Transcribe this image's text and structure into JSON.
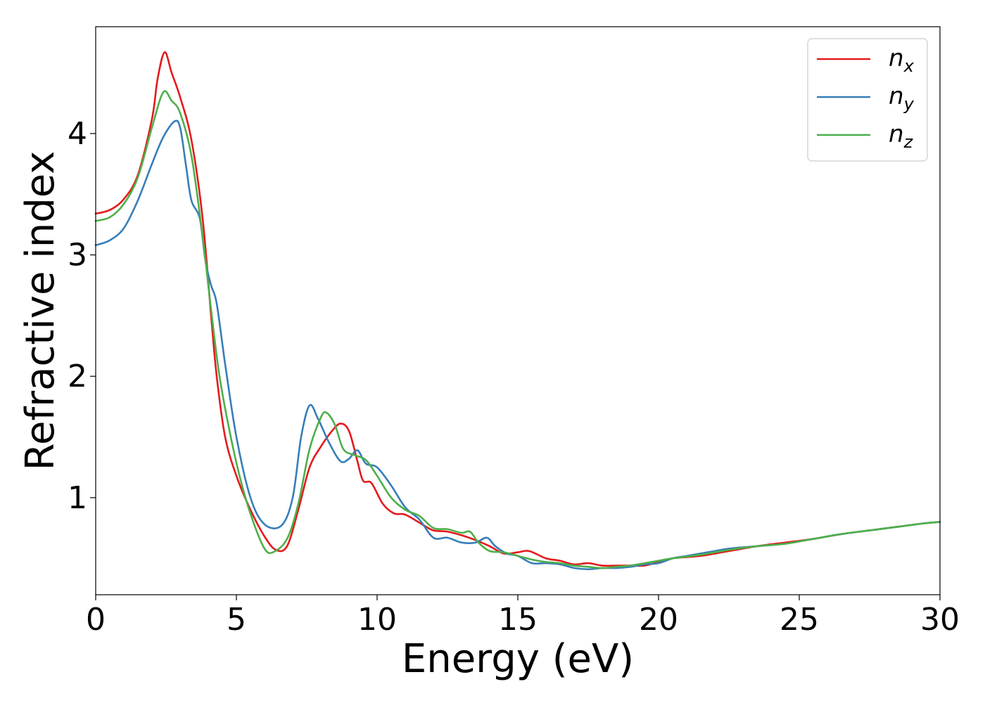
{
  "chart_data": {
    "type": "line",
    "title": "",
    "xlabel": "Energy (eV)",
    "ylabel": "Refractive index",
    "xlim": [
      0,
      30
    ],
    "ylim": [
      0.2,
      4.88
    ],
    "xticks": [
      0,
      5,
      10,
      15,
      20,
      25,
      30
    ],
    "yticks": [
      1,
      2,
      3,
      4
    ],
    "grid": false,
    "legend_position": "top-right",
    "series": [
      {
        "name": "n_x",
        "label_base": "n",
        "label_sub": "x",
        "color": "#e41a1c",
        "points": [
          [
            0,
            3.34
          ],
          [
            0.5,
            3.37
          ],
          [
            1.0,
            3.46
          ],
          [
            1.5,
            3.66
          ],
          [
            2.0,
            4.12
          ],
          [
            2.2,
            4.45
          ],
          [
            2.45,
            4.67
          ],
          [
            2.7,
            4.5
          ],
          [
            3.0,
            4.3
          ],
          [
            3.4,
            3.95
          ],
          [
            3.8,
            3.3
          ],
          [
            4.1,
            2.5
          ],
          [
            4.3,
            2.0
          ],
          [
            4.6,
            1.5
          ],
          [
            5.0,
            1.18
          ],
          [
            5.5,
            0.9
          ],
          [
            6.0,
            0.68
          ],
          [
            6.4,
            0.57
          ],
          [
            6.8,
            0.6
          ],
          [
            7.2,
            0.9
          ],
          [
            7.6,
            1.25
          ],
          [
            8.0,
            1.42
          ],
          [
            8.4,
            1.55
          ],
          [
            8.7,
            1.61
          ],
          [
            9.0,
            1.55
          ],
          [
            9.3,
            1.3
          ],
          [
            9.5,
            1.14
          ],
          [
            9.8,
            1.12
          ],
          [
            10.2,
            0.95
          ],
          [
            10.6,
            0.87
          ],
          [
            11.0,
            0.86
          ],
          [
            11.6,
            0.78
          ],
          [
            12.0,
            0.73
          ],
          [
            12.5,
            0.72
          ],
          [
            13.0,
            0.69
          ],
          [
            13.5,
            0.65
          ],
          [
            14.0,
            0.6
          ],
          [
            14.5,
            0.54
          ],
          [
            15.0,
            0.55
          ],
          [
            15.4,
            0.56
          ],
          [
            16.0,
            0.5
          ],
          [
            16.5,
            0.48
          ],
          [
            17.0,
            0.45
          ],
          [
            17.5,
            0.46
          ],
          [
            18.0,
            0.44
          ],
          [
            18.5,
            0.44
          ],
          [
            19.0,
            0.44
          ],
          [
            19.5,
            0.44
          ],
          [
            20.0,
            0.47
          ],
          [
            20.5,
            0.5
          ],
          [
            21.5,
            0.52
          ],
          [
            22.5,
            0.56
          ],
          [
            23.5,
            0.6
          ],
          [
            24.5,
            0.63
          ],
          [
            25.5,
            0.66
          ],
          [
            26.5,
            0.7
          ],
          [
            27.5,
            0.73
          ],
          [
            28.5,
            0.76
          ],
          [
            29.5,
            0.79
          ],
          [
            30.0,
            0.8
          ]
        ]
      },
      {
        "name": "n_y",
        "label_base": "n",
        "label_sub": "y",
        "color": "#377eb8",
        "points": [
          [
            0,
            3.08
          ],
          [
            0.5,
            3.12
          ],
          [
            1.0,
            3.22
          ],
          [
            1.5,
            3.45
          ],
          [
            2.0,
            3.75
          ],
          [
            2.4,
            3.97
          ],
          [
            2.8,
            4.1
          ],
          [
            3.0,
            4.05
          ],
          [
            3.2,
            3.75
          ],
          [
            3.4,
            3.45
          ],
          [
            3.7,
            3.3
          ],
          [
            3.9,
            2.95
          ],
          [
            4.1,
            2.75
          ],
          [
            4.3,
            2.6
          ],
          [
            4.6,
            2.1
          ],
          [
            5.0,
            1.5
          ],
          [
            5.5,
            1.0
          ],
          [
            6.0,
            0.78
          ],
          [
            6.6,
            0.77
          ],
          [
            7.0,
            1.0
          ],
          [
            7.3,
            1.5
          ],
          [
            7.6,
            1.76
          ],
          [
            7.9,
            1.65
          ],
          [
            8.3,
            1.45
          ],
          [
            8.7,
            1.3
          ],
          [
            9.0,
            1.32
          ],
          [
            9.3,
            1.39
          ],
          [
            9.6,
            1.28
          ],
          [
            10.0,
            1.25
          ],
          [
            10.5,
            1.1
          ],
          [
            11.0,
            0.92
          ],
          [
            11.5,
            0.82
          ],
          [
            12.0,
            0.67
          ],
          [
            12.5,
            0.67
          ],
          [
            13.0,
            0.63
          ],
          [
            13.5,
            0.63
          ],
          [
            13.9,
            0.67
          ],
          [
            14.2,
            0.6
          ],
          [
            14.6,
            0.54
          ],
          [
            15.0,
            0.52
          ],
          [
            15.5,
            0.46
          ],
          [
            16.0,
            0.46
          ],
          [
            16.5,
            0.45
          ],
          [
            17.0,
            0.42
          ],
          [
            17.5,
            0.41
          ],
          [
            18.0,
            0.42
          ],
          [
            18.5,
            0.42
          ],
          [
            19.0,
            0.43
          ],
          [
            19.5,
            0.45
          ],
          [
            20.0,
            0.46
          ],
          [
            20.5,
            0.5
          ],
          [
            21.0,
            0.52
          ],
          [
            21.5,
            0.54
          ],
          [
            22.0,
            0.56
          ],
          [
            22.5,
            0.58
          ],
          [
            23.5,
            0.6
          ],
          [
            24.5,
            0.62
          ],
          [
            25.5,
            0.66
          ],
          [
            26.5,
            0.7
          ],
          [
            27.5,
            0.73
          ],
          [
            28.5,
            0.76
          ],
          [
            29.5,
            0.79
          ],
          [
            30.0,
            0.8
          ]
        ]
      },
      {
        "name": "n_z",
        "label_base": "n",
        "label_sub": "z",
        "color": "#4daf4a",
        "points": [
          [
            0,
            3.28
          ],
          [
            0.5,
            3.31
          ],
          [
            1.0,
            3.42
          ],
          [
            1.5,
            3.64
          ],
          [
            2.0,
            4.05
          ],
          [
            2.4,
            4.34
          ],
          [
            2.7,
            4.27
          ],
          [
            3.0,
            4.17
          ],
          [
            3.4,
            3.82
          ],
          [
            3.8,
            3.15
          ],
          [
            4.1,
            2.55
          ],
          [
            4.4,
            2.0
          ],
          [
            4.8,
            1.5
          ],
          [
            5.2,
            1.1
          ],
          [
            5.6,
            0.8
          ],
          [
            6.0,
            0.58
          ],
          [
            6.3,
            0.55
          ],
          [
            6.8,
            0.66
          ],
          [
            7.2,
            0.95
          ],
          [
            7.6,
            1.4
          ],
          [
            8.0,
            1.66
          ],
          [
            8.2,
            1.7
          ],
          [
            8.5,
            1.6
          ],
          [
            8.8,
            1.4
          ],
          [
            9.2,
            1.35
          ],
          [
            9.6,
            1.31
          ],
          [
            10.0,
            1.18
          ],
          [
            10.5,
            1.0
          ],
          [
            11.0,
            0.9
          ],
          [
            11.5,
            0.85
          ],
          [
            12.0,
            0.75
          ],
          [
            12.5,
            0.74
          ],
          [
            13.0,
            0.71
          ],
          [
            13.3,
            0.72
          ],
          [
            13.6,
            0.63
          ],
          [
            14.0,
            0.56
          ],
          [
            14.5,
            0.55
          ],
          [
            15.0,
            0.52
          ],
          [
            15.5,
            0.49
          ],
          [
            16.0,
            0.47
          ],
          [
            16.5,
            0.46
          ],
          [
            17.0,
            0.44
          ],
          [
            17.5,
            0.43
          ],
          [
            18.0,
            0.42
          ],
          [
            18.5,
            0.43
          ],
          [
            19.0,
            0.44
          ],
          [
            19.5,
            0.46
          ],
          [
            20.0,
            0.48
          ],
          [
            20.5,
            0.5
          ],
          [
            21.5,
            0.53
          ],
          [
            22.5,
            0.57
          ],
          [
            23.5,
            0.6
          ],
          [
            24.5,
            0.62
          ],
          [
            25.5,
            0.66
          ],
          [
            26.5,
            0.7
          ],
          [
            27.5,
            0.73
          ],
          [
            28.5,
            0.76
          ],
          [
            29.5,
            0.79
          ],
          [
            30.0,
            0.8
          ]
        ]
      }
    ]
  }
}
